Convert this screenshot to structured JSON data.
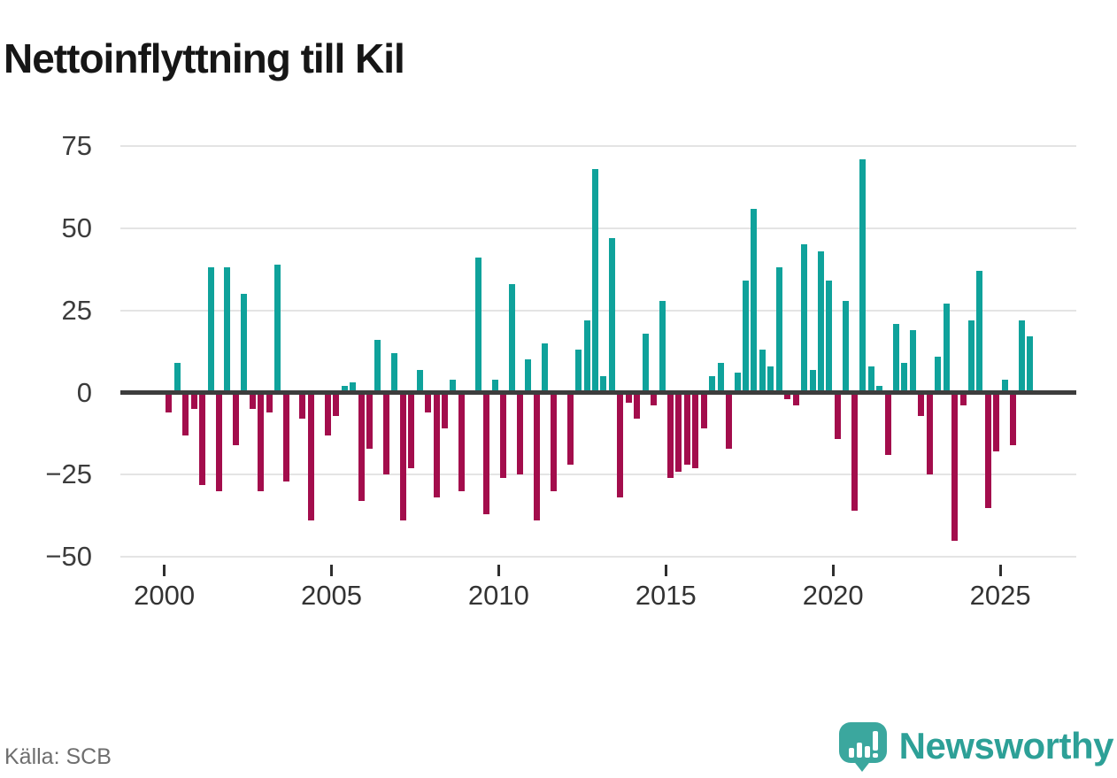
{
  "title": "Nettoinflyttning till Kil",
  "source": "Källa: SCB",
  "brand": {
    "name": "Newsworthy",
    "logo_icon": "speech-bubble-bar-chart-icon",
    "color": "#2da097"
  },
  "chart_data": {
    "type": "bar",
    "title": "Nettoinflyttning till Kil",
    "period": "quarterly",
    "start": "2000Q1",
    "end": "2025Q4",
    "ylim": [
      -50,
      75
    ],
    "y_ticks": [
      75,
      50,
      25,
      0,
      -25,
      -50
    ],
    "x_tick_labels": [
      "2000",
      "2005",
      "2010",
      "2015",
      "2020",
      "2025"
    ],
    "grid": true,
    "legend": false,
    "colors": {
      "positive": "#0fa29b",
      "negative": "#a30d4c"
    },
    "years": [
      {
        "year": 2000,
        "q": [
          -6,
          9,
          -13,
          -5
        ]
      },
      {
        "year": 2001,
        "q": [
          -28,
          38,
          -30,
          38
        ]
      },
      {
        "year": 2002,
        "q": [
          -16,
          30,
          -5,
          -30
        ]
      },
      {
        "year": 2003,
        "q": [
          -6,
          39,
          -27,
          0
        ]
      },
      {
        "year": 2004,
        "q": [
          -8,
          -39,
          0,
          -13
        ]
      },
      {
        "year": 2005,
        "q": [
          -7,
          2,
          3,
          -33
        ]
      },
      {
        "year": 2006,
        "q": [
          -17,
          16,
          -25,
          12
        ]
      },
      {
        "year": 2007,
        "q": [
          -39,
          -23,
          7,
          -6
        ]
      },
      {
        "year": 2008,
        "q": [
          -32,
          -11,
          4,
          -30
        ]
      },
      {
        "year": 2009,
        "q": [
          0,
          41,
          -37,
          4
        ]
      },
      {
        "year": 2010,
        "q": [
          -26,
          33,
          -25,
          10
        ]
      },
      {
        "year": 2011,
        "q": [
          -39,
          15,
          -30,
          0
        ]
      },
      {
        "year": 2012,
        "q": [
          -22,
          13,
          22,
          68
        ]
      },
      {
        "year": 2013,
        "q": [
          5,
          47,
          -32,
          -3
        ]
      },
      {
        "year": 2014,
        "q": [
          -8,
          18,
          -4,
          28
        ]
      },
      {
        "year": 2015,
        "q": [
          -26,
          -24,
          -22,
          -23
        ]
      },
      {
        "year": 2016,
        "q": [
          -11,
          5,
          9,
          -17
        ]
      },
      {
        "year": 2017,
        "q": [
          6,
          34,
          56,
          13
        ]
      },
      {
        "year": 2018,
        "q": [
          8,
          38,
          -2,
          -4
        ]
      },
      {
        "year": 2019,
        "q": [
          45,
          7,
          43,
          34
        ]
      },
      {
        "year": 2020,
        "q": [
          -14,
          28,
          -36,
          71
        ]
      },
      {
        "year": 2021,
        "q": [
          8,
          2,
          -19,
          21
        ]
      },
      {
        "year": 2022,
        "q": [
          9,
          19,
          -7,
          -25
        ]
      },
      {
        "year": 2023,
        "q": [
          11,
          27,
          -45,
          -4
        ]
      },
      {
        "year": 2024,
        "q": [
          22,
          37,
          -35,
          -18
        ]
      },
      {
        "year": 2025,
        "q": [
          4,
          -16,
          22,
          17
        ]
      }
    ]
  }
}
